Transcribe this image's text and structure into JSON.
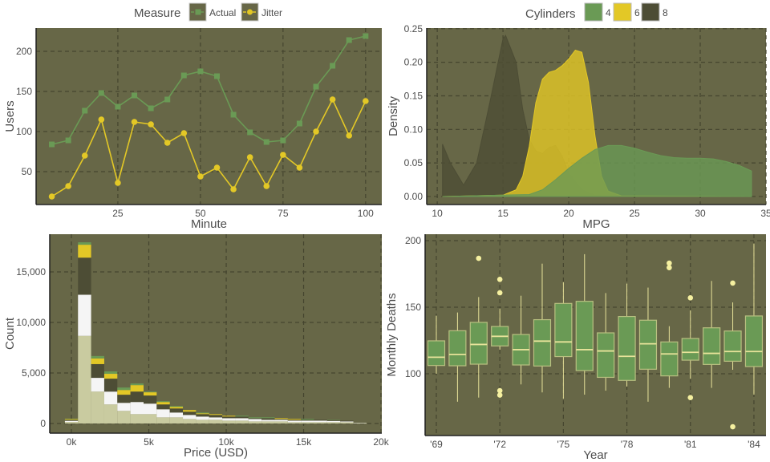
{
  "colors": {
    "panel": "#676747",
    "grid": "#45452f",
    "green": "#6a9a55",
    "yellow": "#e3c826",
    "dark": "#4d4d35",
    "beige": "#c9cba0",
    "white": "#f5f5f5",
    "box_line": "#e8e39a",
    "outlier": "#f5f0a0"
  },
  "chart_data": [
    {
      "type": "line",
      "xlabel": "Minute",
      "ylabel": "Users",
      "xlim": [
        0.25,
        104.9
      ],
      "ylim": [
        9,
        229
      ],
      "xticks": [
        25,
        50,
        75,
        100
      ],
      "yticks": [
        50,
        100,
        150,
        200
      ],
      "legend": {
        "title": "Measure",
        "placement": "top"
      },
      "x": [
        5,
        10,
        15,
        20,
        25,
        30,
        35,
        40,
        45,
        50,
        55,
        60,
        65,
        70,
        75,
        80,
        85,
        90,
        95,
        100
      ],
      "series": [
        {
          "name": "Actual",
          "marker": "square",
          "color": "#6a9a55",
          "values": [
            84,
            89,
            126,
            148,
            131,
            145,
            129,
            140,
            170,
            175,
            169,
            121,
            99,
            87,
            89,
            110,
            156,
            182,
            214,
            219
          ]
        },
        {
          "name": "Jitter",
          "marker": "circle",
          "color": "#e3c826",
          "values": [
            19,
            32,
            70,
            115,
            36,
            112,
            109,
            86,
            98,
            44,
            55,
            28,
            68,
            32,
            71,
            55,
            100,
            140,
            95,
            138
          ]
        }
      ]
    },
    {
      "type": "area",
      "xlabel": "MPG",
      "ylabel": "Density",
      "xlim": [
        9.2,
        35
      ],
      "ylim": [
        -0.012,
        0.251
      ],
      "xticks": [
        10,
        15,
        20,
        25,
        30,
        35
      ],
      "yticks": [
        "0.00",
        "0.05",
        "0.10",
        "0.15",
        "0.20",
        "0.25"
      ],
      "legend": {
        "title": "Cylinders",
        "placement": "top"
      },
      "series": [
        {
          "name": "8",
          "color": "#4d4d35",
          "points": [
            [
              10.4,
              0
            ],
            [
              10.4,
              0.078
            ],
            [
              11,
              0.05
            ],
            [
              12,
              0.017
            ],
            [
              13,
              0.05
            ],
            [
              14,
              0.14
            ],
            [
              15,
              0.235
            ],
            [
              15.2,
              0.24
            ],
            [
              16,
              0.2
            ],
            [
              16.5,
              0.13
            ],
            [
              17,
              0.085
            ],
            [
              17.5,
              0.068
            ],
            [
              18,
              0.064
            ],
            [
              18.5,
              0.073
            ],
            [
              19,
              0.076
            ],
            [
              19.5,
              0.06
            ],
            [
              20,
              0.035
            ],
            [
              21,
              0.01
            ],
            [
              22,
              0.002
            ],
            [
              23,
              0
            ],
            [
              33.9,
              0
            ]
          ]
        },
        {
          "name": "6",
          "color": "#e3c826",
          "points": [
            [
              10.4,
              0
            ],
            [
              15,
              0.002
            ],
            [
              16,
              0.01
            ],
            [
              16.5,
              0.03
            ],
            [
              17,
              0.075
            ],
            [
              17.5,
              0.14
            ],
            [
              18,
              0.175
            ],
            [
              18.5,
              0.185
            ],
            [
              19,
              0.188
            ],
            [
              19.5,
              0.195
            ],
            [
              20,
              0.205
            ],
            [
              20.5,
              0.218
            ],
            [
              21,
              0.215
            ],
            [
              21.5,
              0.17
            ],
            [
              22,
              0.09
            ],
            [
              22.5,
              0.03
            ],
            [
              23,
              0.008
            ],
            [
              24,
              0.001
            ],
            [
              33.9,
              0
            ]
          ]
        },
        {
          "name": "4",
          "color": "#6a9a55",
          "points": [
            [
              10.4,
              0
            ],
            [
              17,
              0.003
            ],
            [
              18,
              0.01
            ],
            [
              19,
              0.025
            ],
            [
              20,
              0.042
            ],
            [
              21,
              0.057
            ],
            [
              22,
              0.07
            ],
            [
              23,
              0.076
            ],
            [
              24,
              0.076
            ],
            [
              25,
              0.072
            ],
            [
              26,
              0.066
            ],
            [
              27,
              0.061
            ],
            [
              28,
              0.058
            ],
            [
              29,
              0.057
            ],
            [
              30,
              0.057
            ],
            [
              31,
              0.056
            ],
            [
              32,
              0.052
            ],
            [
              33,
              0.046
            ],
            [
              33.9,
              0.038
            ],
            [
              33.9,
              0
            ]
          ]
        }
      ],
      "legend_order": [
        "4",
        "6",
        "8"
      ]
    },
    {
      "type": "bar",
      "stacked": true,
      "xlabel": "Price (USD)",
      "ylabel": "Count",
      "xlim": [
        -1.4,
        20.05
      ],
      "ylim": [
        -950,
        18730
      ],
      "xticks": [
        "0k",
        "5k",
        "10k",
        "15k",
        "20k"
      ],
      "xtick_values": [
        0,
        5,
        10,
        15,
        20
      ],
      "yticks": [
        "0",
        "5,000",
        "10,000",
        "15,000"
      ],
      "ytick_values": [
        0,
        5000,
        10000,
        15000
      ],
      "bin_start": -0.42,
      "bin_width": 0.847,
      "series_colors": [
        "#c9cba0",
        "#f5f5f5",
        "#4d4d35",
        "#e3c826",
        "#6a9a55"
      ],
      "bins": [
        [
          150,
          120,
          100,
          80,
          30
        ],
        [
          8670,
          4070,
          3670,
          1280,
          240
        ],
        [
          3160,
          1360,
          1360,
          560,
          240
        ],
        [
          1890,
          1270,
          1280,
          480,
          240
        ],
        [
          1250,
          800,
          800,
          470,
          240
        ],
        [
          930,
          1200,
          1030,
          640,
          160
        ],
        [
          930,
          1040,
          800,
          320,
          70
        ],
        [
          610,
          800,
          480,
          240,
          80
        ],
        [
          610,
          480,
          400,
          160,
          80
        ],
        [
          450,
          400,
          320,
          160,
          0
        ],
        [
          370,
          320,
          240,
          80,
          80
        ],
        [
          370,
          240,
          240,
          80,
          0
        ],
        [
          290,
          240,
          160,
          80,
          0
        ],
        [
          290,
          240,
          160,
          0,
          80
        ],
        [
          210,
          240,
          80,
          0,
          80
        ],
        [
          210,
          160,
          160,
          0,
          80
        ],
        [
          210,
          160,
          80,
          80,
          0
        ],
        [
          130,
          160,
          80,
          80,
          0
        ],
        [
          130,
          160,
          80,
          0,
          80
        ],
        [
          130,
          160,
          80,
          0,
          0
        ],
        [
          130,
          130,
          80,
          0,
          30
        ],
        [
          130,
          80,
          80,
          0,
          0
        ],
        [
          50,
          30,
          20,
          0,
          0
        ]
      ]
    },
    {
      "type": "box",
      "xlabel": "Year",
      "ylabel": "Monthly Deaths",
      "xlim": [
        1968.47,
        1984.57
      ],
      "ylim": [
        53.6,
        204.8
      ],
      "xticks": [
        "'69",
        "'72",
        "'75",
        "'78",
        "'81",
        "'84"
      ],
      "xtick_values": [
        1969,
        1972,
        1975,
        1978,
        1981,
        1984
      ],
      "yticks": [
        100,
        150,
        200
      ],
      "boxes": [
        {
          "year": 1969,
          "lower": 100,
          "q1": 106.2,
          "median": 112.4,
          "q3": 124.7,
          "upper": 143.6,
          "outliers": []
        },
        {
          "year": 1970,
          "lower": 79,
          "q1": 106,
          "median": 114.5,
          "q3": 132.3,
          "upper": 146,
          "outliers": []
        },
        {
          "year": 1971,
          "lower": 82.1,
          "q1": 107.2,
          "median": 122,
          "q3": 138.6,
          "upper": 157.6,
          "outliers": [
            186.7
          ]
        },
        {
          "year": 1972,
          "lower": 118.1,
          "q1": 120.9,
          "median": 128.1,
          "q3": 135.5,
          "upper": 149,
          "outliers": [
            170.9,
            160.8,
            87.3,
            84
          ]
        },
        {
          "year": 1973,
          "lower": 92,
          "q1": 106.6,
          "median": 118.1,
          "q3": 129.5,
          "upper": 158.6,
          "outliers": []
        },
        {
          "year": 1974,
          "lower": 86,
          "q1": 105.8,
          "median": 124.5,
          "q3": 140.6,
          "upper": 182.7,
          "outliers": []
        },
        {
          "year": 1975,
          "lower": 81.3,
          "q1": 112.9,
          "median": 123.9,
          "q3": 152.8,
          "upper": 168.7,
          "outliers": []
        },
        {
          "year": 1976,
          "lower": 84.3,
          "q1": 102.4,
          "median": 118.1,
          "q3": 154.4,
          "upper": 189.8,
          "outliers": []
        },
        {
          "year": 1977,
          "lower": 87.3,
          "q1": 97.3,
          "median": 117.1,
          "q3": 130.7,
          "upper": 160.6,
          "outliers": []
        },
        {
          "year": 1978,
          "lower": 90.4,
          "q1": 95,
          "median": 113.1,
          "q3": 143,
          "upper": 167.7,
          "outliers": []
        },
        {
          "year": 1979,
          "lower": 79,
          "q1": 103.4,
          "median": 122.5,
          "q3": 140.2,
          "upper": 164.7,
          "outliers": []
        },
        {
          "year": 1980,
          "lower": 89.4,
          "q1": 98.4,
          "median": 114.9,
          "q3": 123.9,
          "upper": 135.7,
          "outliers": [
            183.1,
            179.7
          ]
        },
        {
          "year": 1981,
          "lower": 96.2,
          "q1": 110.2,
          "median": 116.1,
          "q3": 126.5,
          "upper": 147.6,
          "outliers": [
            157,
            82.1
          ]
        },
        {
          "year": 1982,
          "lower": 89.4,
          "q1": 107,
          "median": 115.3,
          "q3": 134.5,
          "upper": 169.7,
          "outliers": []
        },
        {
          "year": 1983,
          "lower": 103,
          "q1": 109.4,
          "median": 116.7,
          "q3": 132.1,
          "upper": 153.6,
          "outliers": [
            168.1,
            60.2
          ]
        },
        {
          "year": 1984,
          "lower": 84.3,
          "q1": 105.4,
          "median": 116.7,
          "q3": 143.4,
          "upper": 197.8,
          "outliers": []
        }
      ]
    }
  ]
}
